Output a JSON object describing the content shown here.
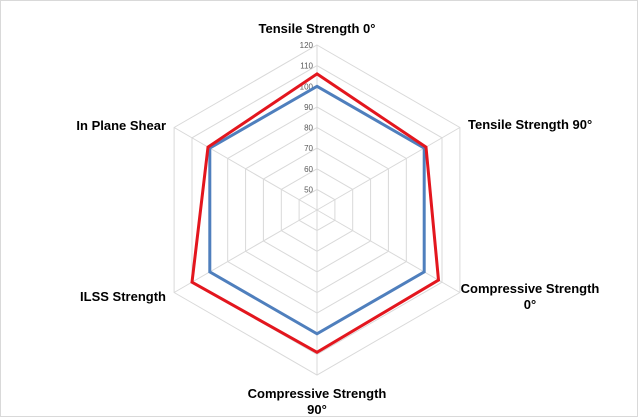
{
  "chart_data": {
    "type": "radar",
    "axes": [
      [
        "Tensile Strength 0°"
      ],
      [
        "Tensile Strength 90°"
      ],
      [
        "Compressive Strength",
        "0°"
      ],
      [
        "Compressive Strength",
        "90°"
      ],
      [
        "ILSS Strength"
      ],
      [
        "In Plane Shear"
      ]
    ],
    "r_ticks": [
      50,
      60,
      70,
      80,
      90,
      100,
      110,
      120
    ],
    "r_range": [
      40,
      120
    ],
    "grid": true,
    "legend": "none",
    "series": [
      {
        "color": "#4f7fbd",
        "values": [
          100,
          100,
          100,
          100,
          100,
          100
        ]
      },
      {
        "color": "#e3161e",
        "values": [
          106,
          101,
          108,
          109,
          110,
          101
        ]
      }
    ]
  }
}
